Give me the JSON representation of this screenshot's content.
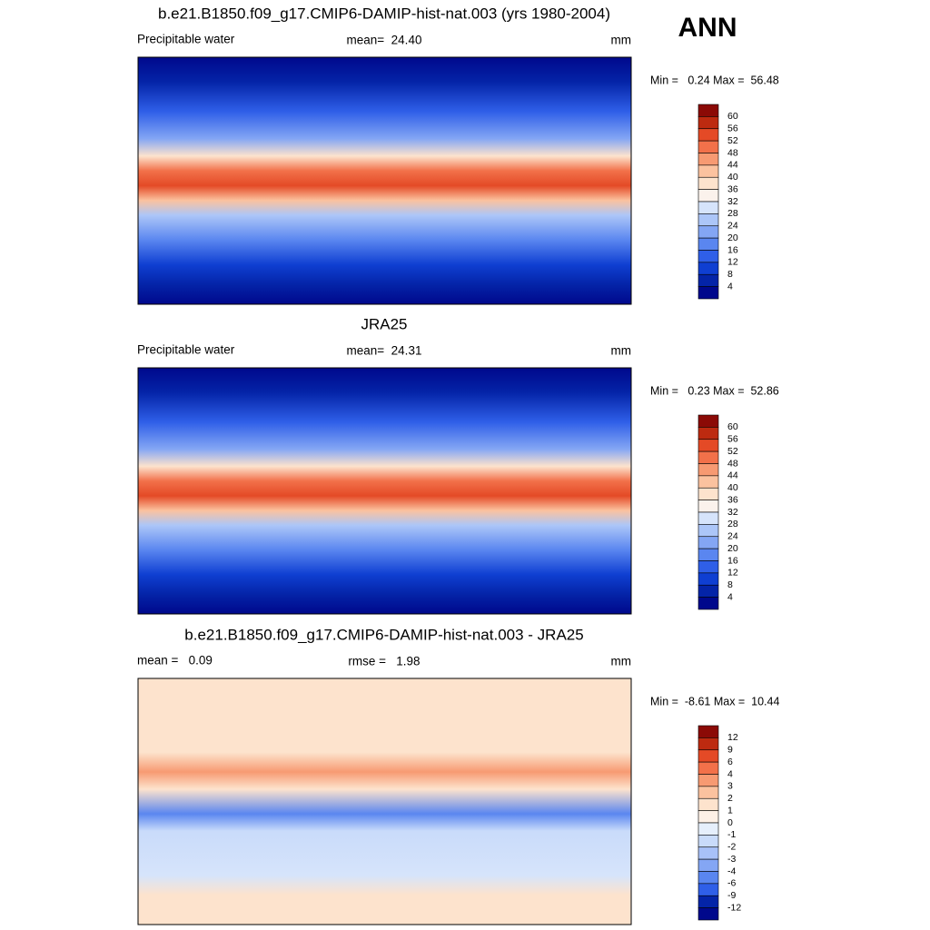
{
  "season": "ANN",
  "panels": [
    {
      "title": "b.e21.B1850.f09_g17.CMIP6-DAMIP-hist-nat.003 (yrs 1980-2004)",
      "left": "Precipitable water",
      "center": "mean=  24.40",
      "right": "mm",
      "minmax": "Min =   0.24 Max =  56.48",
      "colorbar": {
        "labels": [
          "60",
          "56",
          "52",
          "48",
          "44",
          "40",
          "36",
          "32",
          "28",
          "24",
          "20",
          "16",
          "12",
          "8",
          "4"
        ],
        "colors": [
          "#8b0a06",
          "#bd2a10",
          "#e44a26",
          "#f2714a",
          "#f79a72",
          "#fbc29f",
          "#fde3cd",
          "#fbf2ec",
          "#d6e4fb",
          "#acc6f8",
          "#84a6f4",
          "#5a86f0",
          "#2f5fe8",
          "#0f3fd2",
          "#0424a8",
          "#00088c"
        ]
      }
    },
    {
      "title": "JRA25",
      "left": "Precipitable water",
      "center": "mean=  24.31",
      "right": "mm",
      "minmax": "Min =   0.23 Max =  52.86",
      "colorbar": {
        "labels": [
          "60",
          "56",
          "52",
          "48",
          "44",
          "40",
          "36",
          "32",
          "28",
          "24",
          "20",
          "16",
          "12",
          "8",
          "4"
        ],
        "colors": [
          "#8b0a06",
          "#bd2a10",
          "#e44a26",
          "#f2714a",
          "#f79a72",
          "#fbc29f",
          "#fde3cd",
          "#fbf2ec",
          "#d6e4fb",
          "#acc6f8",
          "#84a6f4",
          "#5a86f0",
          "#2f5fe8",
          "#0f3fd2",
          "#0424a8",
          "#00088c"
        ]
      }
    },
    {
      "title": "b.e21.B1850.f09_g17.CMIP6-DAMIP-hist-nat.003 - JRA25",
      "left": "mean =   0.09",
      "center": "rmse =   1.98",
      "right": "mm",
      "minmax": "Min =  -8.61 Max =  10.44",
      "colorbar": {
        "labels": [
          "12",
          "9",
          "6",
          "4",
          "3",
          "2",
          "1",
          "0",
          "-1",
          "-2",
          "-3",
          "-4",
          "-6",
          "-9",
          "-12"
        ],
        "colors": [
          "#8b0a06",
          "#bd2a10",
          "#e44a26",
          "#f2714a",
          "#f79a72",
          "#fbc29f",
          "#fde3cd",
          "#fdf0e6",
          "#e6effc",
          "#c9dbfa",
          "#a8c1f8",
          "#84a6f4",
          "#5a86f0",
          "#2f5fe8",
          "#0424a8",
          "#00088c"
        ]
      }
    }
  ]
}
